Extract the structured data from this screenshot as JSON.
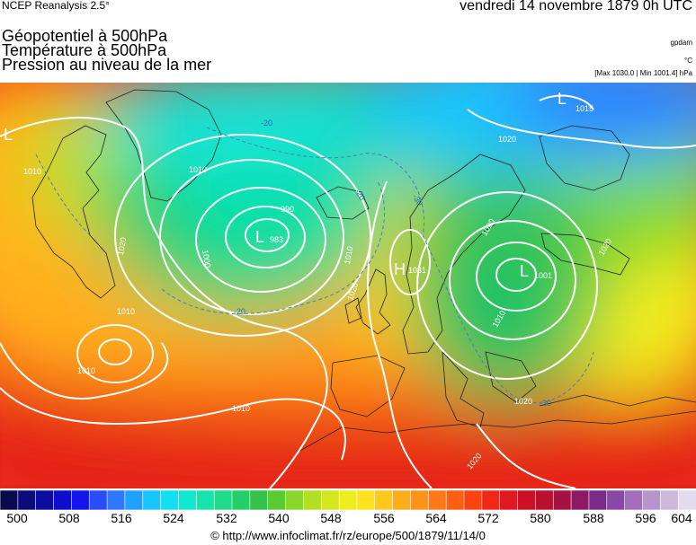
{
  "header": {
    "source": "NCEP Reanalysis 2.5°",
    "date": "vendredi 14 novembre 1879 0h UTC"
  },
  "titles": [
    "Géopotentiel à 500hPa",
    "Température à 500hPa",
    "Pression au niveau de la mer"
  ],
  "units": {
    "geopotential": "gpdam",
    "temperature": "°C",
    "pressure_range": "[Max 1030.0 | Min 1001.4] hPa"
  },
  "map": {
    "isobar_labels": [
      "990",
      "983",
      "1000",
      "1010",
      "1010",
      "1010",
      "1010",
      "1010",
      "1020",
      "1020",
      "1020",
      "1020",
      "1020",
      "1031",
      "1001",
      "1010",
      "1010",
      "1020",
      "1020"
    ],
    "temperature_labels": [
      "-20",
      "-20",
      "-30",
      "-20",
      "-30"
    ],
    "pressure_centers": [
      {
        "type": "L",
        "value": "983"
      },
      {
        "type": "L",
        "value": "1001"
      },
      {
        "type": "H",
        "value": "1031"
      },
      {
        "type": "L",
        "value": "1015"
      },
      {
        "type": "L",
        "value": ""
      }
    ]
  },
  "colorbar": {
    "ticks": [
      "500",
      "508",
      "516",
      "524",
      "532",
      "540",
      "548",
      "556",
      "564",
      "572",
      "580",
      "588",
      "596",
      "604"
    ],
    "colors": [
      "#0a0a4e",
      "#0b0b7a",
      "#0c0ca0",
      "#0e0ecc",
      "#1414ee",
      "#2a4cff",
      "#2f78ff",
      "#1fa2ff",
      "#18c6ff",
      "#11e0f2",
      "#10e8cf",
      "#18e3aa",
      "#1edc8c",
      "#24cf6a",
      "#35c24a",
      "#5acb33",
      "#88d72a",
      "#b1e022",
      "#d4e61e",
      "#eeee1e",
      "#ffe21e",
      "#ffc81c",
      "#ffae1a",
      "#ff9418",
      "#ff7a16",
      "#ff5e14",
      "#ff4212",
      "#f0281a",
      "#e01822",
      "#cc1026",
      "#b8102e",
      "#a41244",
      "#8e1a66",
      "#7c2a8a",
      "#8a48a6",
      "#a26ebc",
      "#b894cc",
      "#cdb8dc",
      "#e2dcee"
    ]
  },
  "footer": {
    "url": "© http://www.infoclimat.fr/rz/europe/500/1879/11/14/0"
  }
}
